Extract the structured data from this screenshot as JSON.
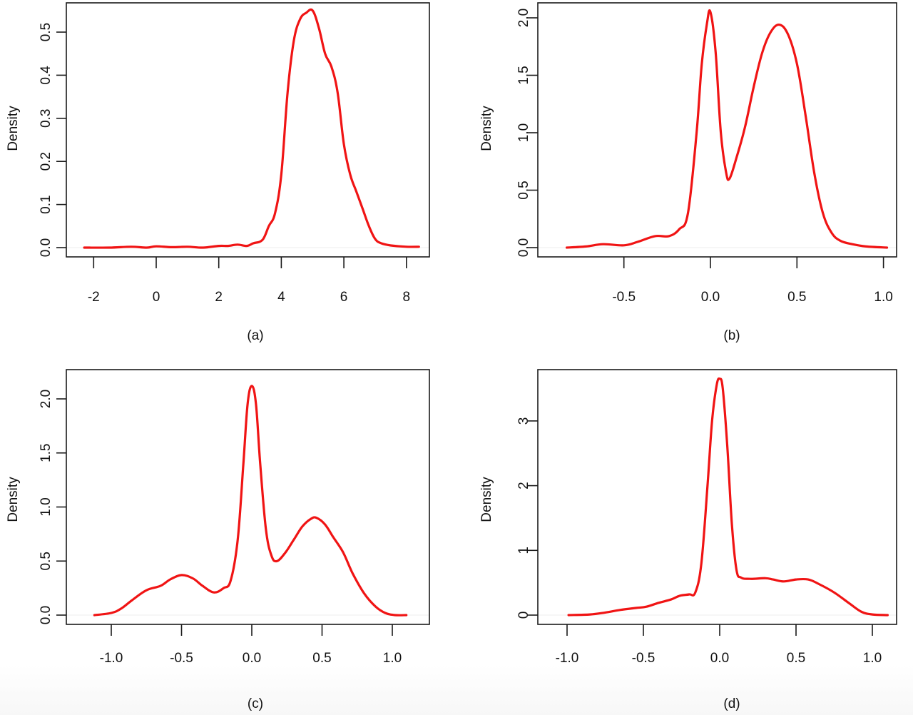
{
  "figure": {
    "panels": [
      {
        "id": "a",
        "caption": "(a)",
        "ylabel": "Density"
      },
      {
        "id": "b",
        "caption": "(b)",
        "ylabel": "Density"
      },
      {
        "id": "c",
        "caption": "(c)",
        "ylabel": "Density"
      },
      {
        "id": "d",
        "caption": "(d)",
        "ylabel": "Density"
      }
    ],
    "curve_color": "#f01414"
  },
  "chart_data": [
    {
      "type": "line",
      "title": "(a)",
      "xlabel": "",
      "ylabel": "Density",
      "xlim": [
        -2.3,
        8.4
      ],
      "ylim": [
        -0.02,
        0.57
      ],
      "xticks": [
        -2,
        0,
        2,
        4,
        6,
        8
      ],
      "xtick_labels": [
        "-2",
        "0",
        "2",
        "4",
        "6",
        "8"
      ],
      "yticks": [
        0.0,
        0.1,
        0.2,
        0.3,
        0.4,
        0.5
      ],
      "ytick_labels": [
        "0.0",
        "0.1",
        "0.2",
        "0.3",
        "0.4",
        "0.5"
      ],
      "grid": false,
      "series": [
        {
          "name": "density",
          "x": [
            -2.3,
            -1.5,
            -0.8,
            -0.3,
            0.0,
            0.5,
            1.0,
            1.5,
            2.0,
            2.3,
            2.6,
            2.9,
            3.1,
            3.4,
            3.6,
            3.8,
            4.0,
            4.2,
            4.4,
            4.6,
            4.8,
            5.0,
            5.2,
            5.4,
            5.6,
            5.8,
            6.0,
            6.2,
            6.4,
            6.6,
            6.8,
            7.0,
            7.2,
            7.5,
            8.0,
            8.4
          ],
          "y": [
            0.0,
            0.0,
            0.002,
            0.0,
            0.003,
            0.001,
            0.002,
            0.0,
            0.004,
            0.004,
            0.007,
            0.004,
            0.01,
            0.018,
            0.05,
            0.08,
            0.17,
            0.36,
            0.48,
            0.53,
            0.545,
            0.55,
            0.51,
            0.45,
            0.42,
            0.36,
            0.24,
            0.17,
            0.13,
            0.09,
            0.05,
            0.02,
            0.01,
            0.005,
            0.002,
            0.002
          ]
        }
      ]
    },
    {
      "type": "line",
      "title": "(b)",
      "xlabel": "",
      "ylabel": "Density",
      "xlim": [
        -0.85,
        1.05
      ],
      "ylim": [
        -0.08,
        2.15
      ],
      "xticks": [
        -0.5,
        0.0,
        0.5,
        1.0
      ],
      "xtick_labels": [
        "-0.5",
        "0.0",
        "0.5",
        "1.0"
      ],
      "yticks": [
        0.0,
        0.5,
        1.0,
        1.5,
        2.0
      ],
      "ytick_labels": [
        "0.0",
        "0.5",
        "1.0",
        "1.5",
        "2.0"
      ],
      "grid": false,
      "series": [
        {
          "name": "density",
          "x": [
            -0.83,
            -0.72,
            -0.62,
            -0.5,
            -0.42,
            -0.32,
            -0.24,
            -0.18,
            -0.13,
            -0.08,
            -0.05,
            -0.02,
            0.0,
            0.03,
            0.06,
            0.09,
            0.11,
            0.15,
            0.2,
            0.25,
            0.3,
            0.35,
            0.4,
            0.45,
            0.5,
            0.55,
            0.6,
            0.65,
            0.7,
            0.75,
            0.82,
            0.9,
            1.02
          ],
          "y": [
            0.0,
            0.01,
            0.03,
            0.02,
            0.05,
            0.1,
            0.1,
            0.16,
            0.3,
            1.0,
            1.6,
            1.95,
            2.05,
            1.7,
            1.0,
            0.66,
            0.6,
            0.78,
            1.05,
            1.4,
            1.7,
            1.88,
            1.94,
            1.85,
            1.6,
            1.15,
            0.65,
            0.3,
            0.13,
            0.06,
            0.03,
            0.01,
            0.0
          ]
        }
      ]
    },
    {
      "type": "line",
      "title": "(c)",
      "xlabel": "",
      "ylabel": "Density",
      "xlim": [
        -1.2,
        1.2
      ],
      "ylim": [
        -0.08,
        2.22
      ],
      "xticks": [
        -1.0,
        -0.5,
        0.0,
        0.5,
        1.0
      ],
      "xtick_labels": [
        "-1.0",
        "-0.5",
        "0.0",
        "0.5",
        "1.0"
      ],
      "yticks": [
        0.0,
        0.5,
        1.0,
        1.5,
        2.0
      ],
      "ytick_labels": [
        "0.0",
        "0.5",
        "1.0",
        "1.5",
        "2.0"
      ],
      "grid": false,
      "series": [
        {
          "name": "density",
          "x": [
            -1.12,
            -1.0,
            -0.93,
            -0.85,
            -0.75,
            -0.65,
            -0.58,
            -0.5,
            -0.42,
            -0.35,
            -0.27,
            -0.2,
            -0.15,
            -0.1,
            -0.06,
            -0.03,
            0.0,
            0.03,
            0.06,
            0.1,
            0.14,
            0.18,
            0.24,
            0.3,
            0.36,
            0.42,
            0.46,
            0.52,
            0.58,
            0.65,
            0.72,
            0.8,
            0.88,
            0.95,
            1.02,
            1.1
          ],
          "y": [
            0.0,
            0.02,
            0.06,
            0.14,
            0.23,
            0.27,
            0.33,
            0.37,
            0.34,
            0.27,
            0.21,
            0.25,
            0.32,
            0.7,
            1.4,
            1.95,
            2.12,
            1.95,
            1.4,
            0.8,
            0.55,
            0.5,
            0.58,
            0.7,
            0.82,
            0.89,
            0.9,
            0.84,
            0.72,
            0.58,
            0.38,
            0.2,
            0.08,
            0.02,
            0.0,
            0.0
          ]
        }
      ]
    },
    {
      "type": "line",
      "title": "(d)",
      "xlabel": "",
      "ylabel": "Density",
      "xlim": [
        -1.1,
        1.2
      ],
      "ylim": [
        -0.15,
        3.85
      ],
      "xticks": [
        -1.0,
        -0.5,
        0.0,
        0.5,
        1.0
      ],
      "xtick_labels": [
        "-1.0",
        "-0.5",
        "0.0",
        "0.5",
        "1.0"
      ],
      "yticks": [
        0,
        1,
        2,
        3
      ],
      "ytick_labels": [
        "0",
        "1",
        "2",
        "3"
      ],
      "grid": false,
      "series": [
        {
          "name": "density",
          "x": [
            -0.99,
            -0.85,
            -0.75,
            -0.65,
            -0.55,
            -0.48,
            -0.4,
            -0.32,
            -0.26,
            -0.2,
            -0.16,
            -0.12,
            -0.08,
            -0.05,
            -0.02,
            0.0,
            0.02,
            0.05,
            0.08,
            0.11,
            0.14,
            0.2,
            0.3,
            0.35,
            0.42,
            0.5,
            0.58,
            0.65,
            0.75,
            0.85,
            0.93,
            1.0,
            1.1
          ],
          "y": [
            0.0,
            0.01,
            0.04,
            0.08,
            0.11,
            0.13,
            0.19,
            0.24,
            0.3,
            0.32,
            0.35,
            0.8,
            2.0,
            3.0,
            3.55,
            3.65,
            3.5,
            2.6,
            1.4,
            0.7,
            0.58,
            0.56,
            0.57,
            0.55,
            0.52,
            0.55,
            0.55,
            0.48,
            0.35,
            0.18,
            0.05,
            0.01,
            0.0
          ]
        }
      ]
    }
  ]
}
